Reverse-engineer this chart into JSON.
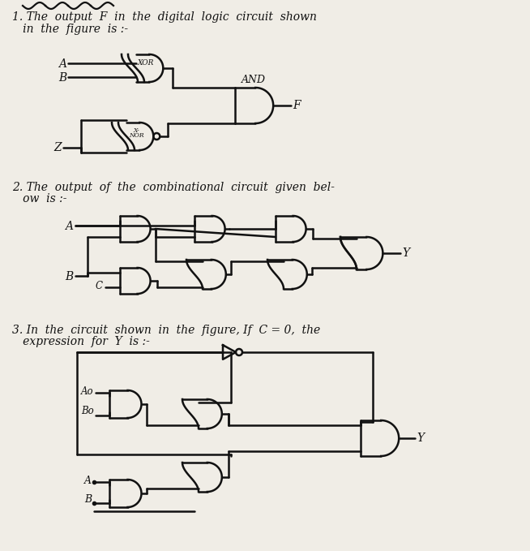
{
  "page_bg": "#f0ede6",
  "font_color": "#111111",
  "line_color": "#111111",
  "line_width": 1.8,
  "q1_text1": "1. The  output  F  in  the  digital  logic  circuit  shown",
  "q1_text2": "   in  the  figure  is :-",
  "q2_text1": "2. The  output  of  the  combinational  circuit  given  bel-",
  "q2_text2": "   ow  is :-",
  "q3_text1": "3. In  the  circuit  shown  in  the  figure, If  C = 0,  the",
  "q3_text2": "   expression  for  Y  is :-"
}
